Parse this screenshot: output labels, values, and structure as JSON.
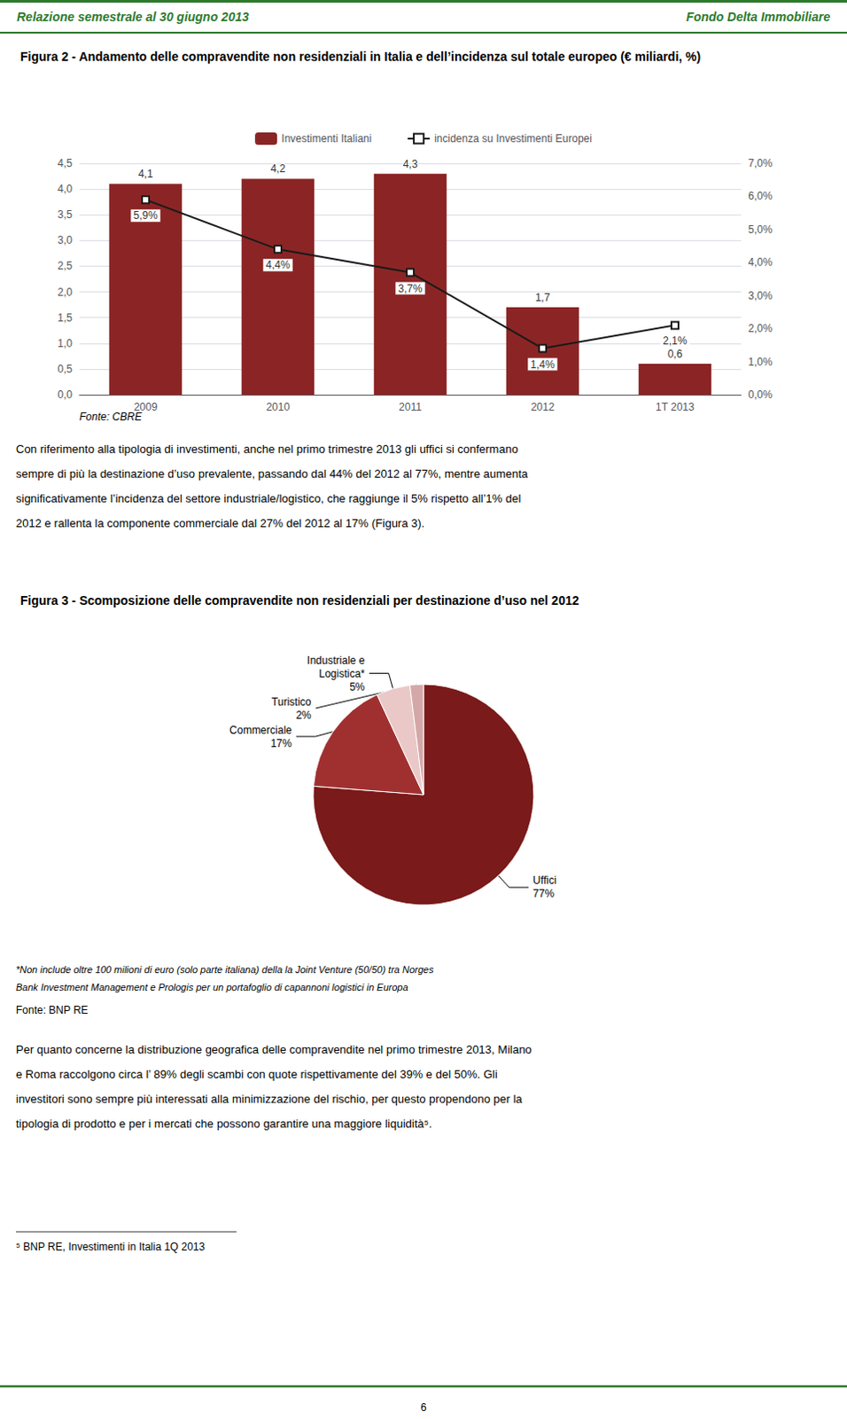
{
  "page": {
    "color": "#2d7a2d",
    "header": [
      "Relazione semestrale al 30 giugno 2013",
      "Fondo Delta Immobiliare"
    ],
    "body_1": [
      "Con riferimento alla tipologia di investimenti, anche nel primo trimestre 2013 gli uffici si confermano",
      "sempre di più la destinazione d’uso prevalente, passando dal 44% del 2012 al 77%, mentre aumenta",
      "significativamente l’incidenza del settore industriale/logistico, che raggiunge il 5% rispetto all’1% del",
      "2012 e rallenta la componente commerciale dal 27% del 2012 al 17% (Figura 3)."
    ],
    "body_2": [
      "Per quanto concerne la distribuzione geografica delle compravendite nel primo trimestre 2013, Milano",
      "e Roma raccolgono circa l’ 89% degli scambi con quote rispettivamente del 39% e del 50%. Gli",
      "investitori sono sempre più interessati alla minimizzazione del rischio, per questo propendono per la",
      "tipologia di prodotto e per i mercati che possono garantire una maggiore liquidità⁵."
    ],
    "footnote": "⁵ BNP RE, Investimenti in Italia 1Q 2013",
    "page_number": "6"
  },
  "chart_data": [
    {
      "type": "bar",
      "title": "Figura 2 - Andamento delle compravendite non residenziali in Italia e dell’incidenza sul totale europeo (€ miliardi, %)",
      "categories": [
        "2009",
        "2010",
        "2011",
        "2012",
        "1T 2013"
      ],
      "series": [
        {
          "name": "Investimenti Italiani",
          "type": "bar",
          "color": "#8b2525",
          "values": [
            4.1,
            4.2,
            4.3,
            1.7,
            0.6
          ],
          "value_labels": [
            "4,1",
            "4,2",
            "4,3",
            "1,7",
            "0,6"
          ]
        },
        {
          "name": "incidenza su Investimenti Europei",
          "type": "line",
          "axis": "y2",
          "color": "#1a1a1a",
          "marker": "square",
          "values": [
            5.9,
            4.4,
            3.7,
            1.4,
            2.1
          ],
          "value_labels": [
            "5,9%",
            "4,4%",
            "3,7%",
            "1,4%",
            "2,1%"
          ]
        }
      ],
      "ylim": [
        0,
        4.5
      ],
      "yticks": [
        {
          "value": 0.0,
          "label": "0,0"
        },
        {
          "value": 0.5,
          "label": "0,5"
        },
        {
          "value": 1.0,
          "label": "1,0"
        },
        {
          "value": 1.5,
          "label": "1,5"
        },
        {
          "value": 2.0,
          "label": "2,0"
        },
        {
          "value": 2.5,
          "label": "2,5"
        },
        {
          "value": 3.0,
          "label": "3,0"
        },
        {
          "value": 3.5,
          "label": "3,5"
        },
        {
          "value": 4.0,
          "label": "4,0"
        },
        {
          "value": 4.5,
          "label": "4,5"
        }
      ],
      "y2lim": [
        0,
        7.0
      ],
      "y2ticks": [
        {
          "value": 0.0,
          "label": "0,0%"
        },
        {
          "value": 1.0,
          "label": "1,0%"
        },
        {
          "value": 2.0,
          "label": "2,0%"
        },
        {
          "value": 3.0,
          "label": "3,0%"
        },
        {
          "value": 4.0,
          "label": "4,0%"
        },
        {
          "value": 5.0,
          "label": "5,0%"
        },
        {
          "value": 6.0,
          "label": "6,0%"
        },
        {
          "value": 7.0,
          "label": "7,0%"
        }
      ],
      "grid": true,
      "legend": "top",
      "data_labels": true,
      "annotations": [
        "Fonte: CBRE"
      ]
    },
    {
      "type": "pie",
      "title": "Figura 3 - Scomposizione delle compravendite non residenziali per destinazione d’uso nel 2012",
      "categories": [
        "Uffici",
        "Commerciale",
        "Industriale e\nLogistica*",
        "Turistico"
      ],
      "values": [
        77,
        17,
        5,
        2
      ],
      "value_labels": [
        "77%",
        "17%",
        "5%",
        "2%"
      ],
      "colors": [
        "#7a1a1a",
        "#a03030",
        "#eac8c8",
        "#d4a8a8"
      ],
      "data_labels": true,
      "annotations": [
        "*Non include oltre 100 milioni di euro (solo parte italiana) della la Joint Venture (50/50) tra Norges",
        "Bank Investment Management e Prologis per un portafoglio di capannoni logistici in Europa",
        "Fonte: BNP RE"
      ]
    }
  ]
}
